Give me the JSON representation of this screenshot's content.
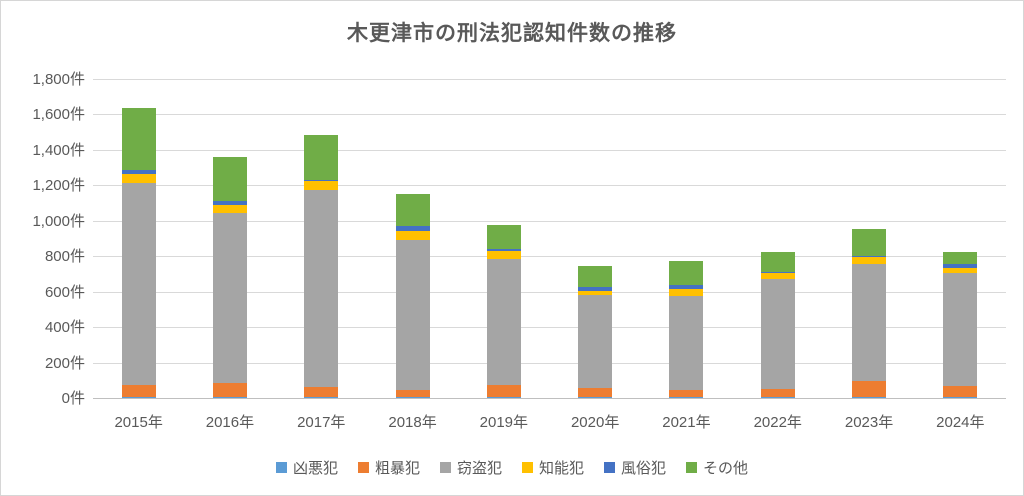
{
  "chart_data": {
    "type": "bar",
    "stacked": true,
    "title": "木更津市の刑法犯認知件数の推移",
    "categories": [
      "2015年",
      "2016年",
      "2017年",
      "2018年",
      "2019年",
      "2020年",
      "2021年",
      "2022年",
      "2023年",
      "2024年"
    ],
    "series": [
      {
        "name": "凶悪犯",
        "color": "#5B9BD5",
        "values": [
          6,
          5,
          6,
          4,
          5,
          3,
          4,
          4,
          6,
          5
        ]
      },
      {
        "name": "粗暴犯",
        "color": "#ED7D31",
        "values": [
          68,
          80,
          58,
          44,
          66,
          52,
          44,
          48,
          92,
          62
        ]
      },
      {
        "name": "窃盗犯",
        "color": "#A5A5A5",
        "values": [
          1140,
          958,
          1110,
          845,
          715,
          528,
          530,
          618,
          658,
          640
        ]
      },
      {
        "name": "知能犯",
        "color": "#FFC000",
        "values": [
          50,
          48,
          50,
          50,
          45,
          23,
          40,
          34,
          40,
          28
        ]
      },
      {
        "name": "風俗犯",
        "color": "#4472C4",
        "values": [
          22,
          22,
          8,
          28,
          8,
          22,
          22,
          6,
          3,
          22
        ]
      },
      {
        "name": "その他",
        "color": "#70AD47",
        "values": [
          350,
          248,
          255,
          180,
          140,
          118,
          135,
          112,
          152,
          68
        ]
      }
    ],
    "totals": [
      1636,
      1361,
      1487,
      1151,
      979,
      746,
      775,
      822,
      951,
      825
    ],
    "ylabel_unit": "件",
    "ylim": [
      0,
      1800
    ],
    "ytick_step": 200,
    "ytick_labels": [
      "0件",
      "200件",
      "400件",
      "600件",
      "800件",
      "1,000件",
      "1,200件",
      "1,400件",
      "1,600件",
      "1,800件"
    ],
    "grid": true,
    "legend_position": "bottom"
  }
}
